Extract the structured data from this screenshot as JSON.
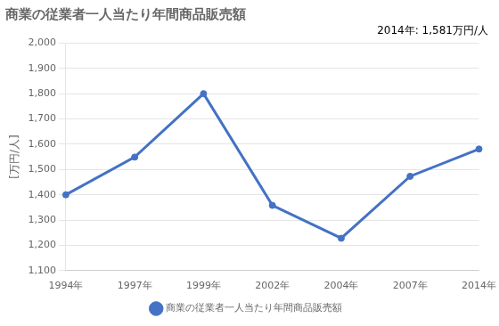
{
  "chart_data": {
    "type": "line",
    "title": "商業の従業者一人当たり年間商品販売額",
    "ylabel": "[万円/人]",
    "annotation": "2014年: 1,581万円/人",
    "categories": [
      "1994年",
      "1997年",
      "1999年",
      "2002年",
      "2004年",
      "2007年",
      "2014年"
    ],
    "series": [
      {
        "name": "商業の従業者一人当たり年間商品販売額",
        "color": "#4472C4",
        "marker": "o",
        "values": [
          1400,
          1549,
          1800,
          1358,
          1228,
          1473,
          1581
        ]
      }
    ],
    "ylim": [
      1100,
      2000
    ],
    "yticks": [
      {
        "value": 1100,
        "label": "1,100"
      },
      {
        "value": 1200,
        "label": "1,200"
      },
      {
        "value": 1300,
        "label": "1,300"
      },
      {
        "value": 1400,
        "label": "1,400"
      },
      {
        "value": 1500,
        "label": "1,500"
      },
      {
        "value": 1600,
        "label": "1,600"
      },
      {
        "value": 1700,
        "label": "1,700"
      },
      {
        "value": 1800,
        "label": "1,800"
      },
      {
        "value": 1900,
        "label": "1,900"
      },
      {
        "value": 2000,
        "label": "2,000"
      }
    ],
    "grid": true,
    "legend": "bottom"
  }
}
